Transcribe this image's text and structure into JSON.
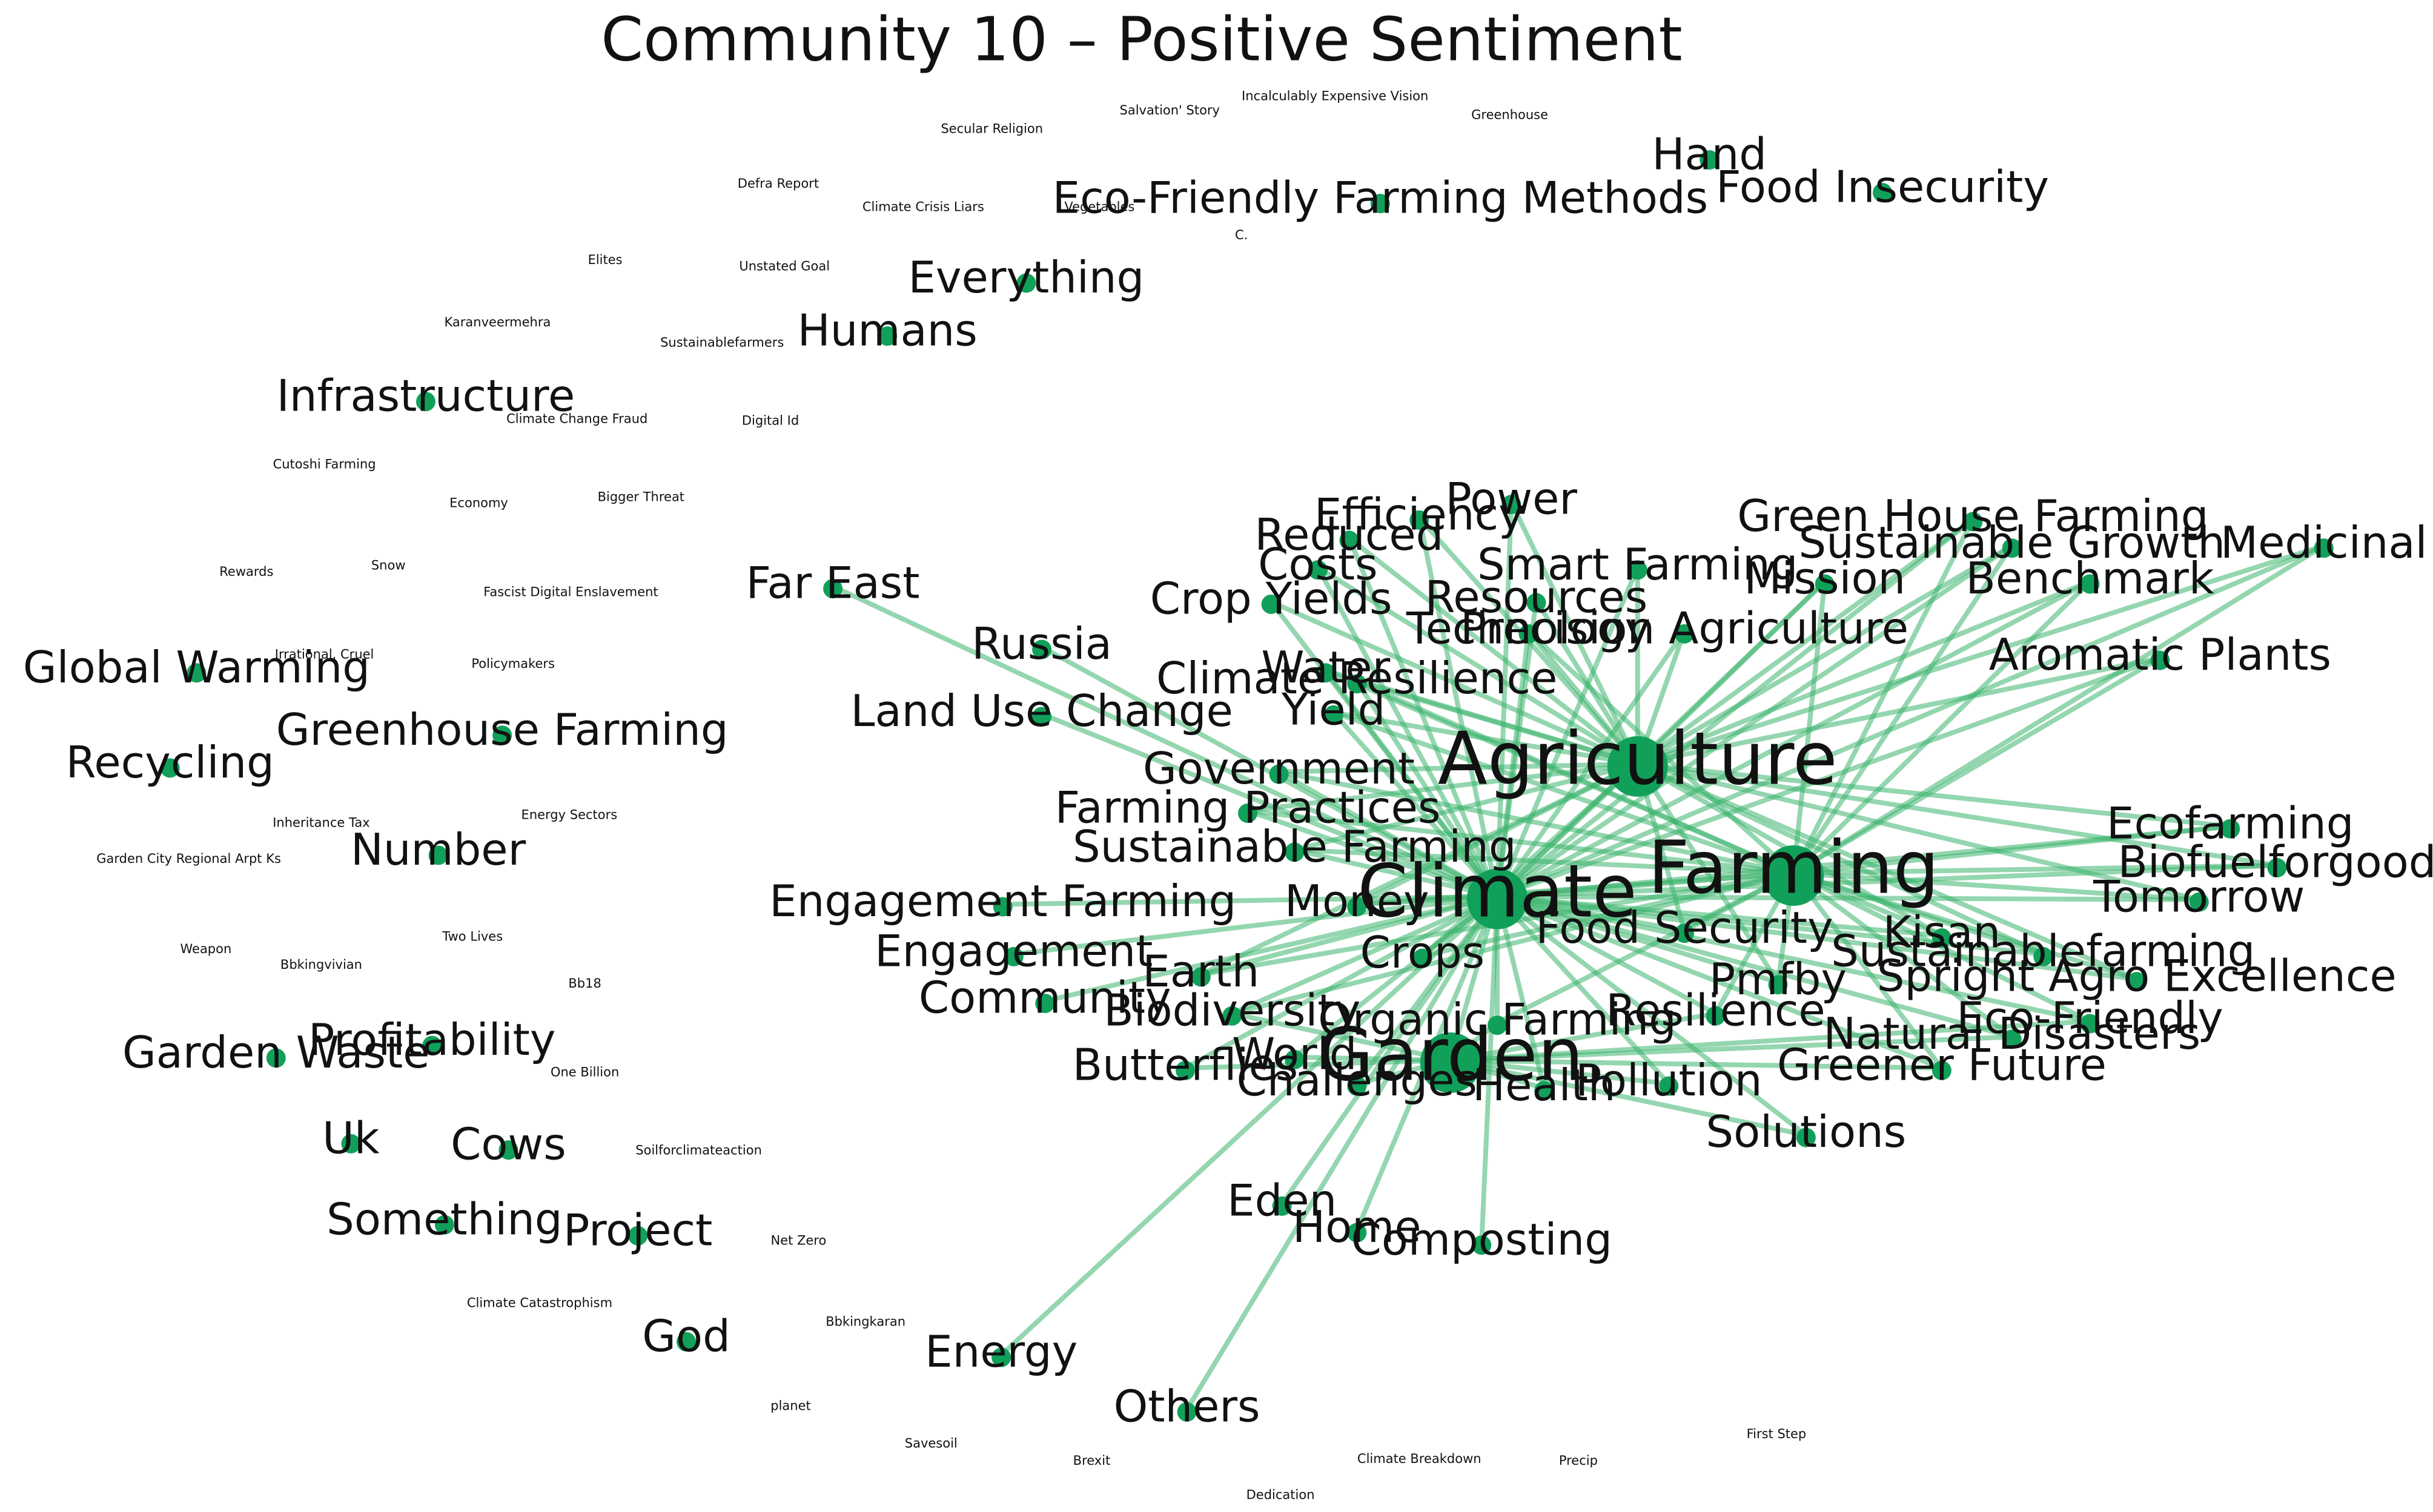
{
  "title": "Community 10 – Positive Sentiment",
  "nodes": [
    {
      "label": "Salvation' Story"
    },
    {
      "label": "Incalculably Expensive Vision"
    },
    {
      "label": "Greenhouse"
    },
    {
      "label": "Secular Religion"
    },
    {
      "label": "Defra Report"
    },
    {
      "label": "Climate Crisis Liars"
    },
    {
      "label": "Vegetables"
    },
    {
      "label": "C."
    },
    {
      "label": "Elites"
    },
    {
      "label": "Unstated Goal"
    },
    {
      "label": "Karanveermehra"
    },
    {
      "label": "Sustainablefarmers"
    },
    {
      "label": "Climate Change Fraud"
    },
    {
      "label": "Digital Id"
    },
    {
      "label": "Cutoshi Farming"
    },
    {
      "label": "Economy"
    },
    {
      "label": "Bigger Threat"
    },
    {
      "label": "Rewards"
    },
    {
      "label": "Snow"
    },
    {
      "label": "Fascist Digital Enslavement"
    },
    {
      "label": "Irrational, Cruel"
    },
    {
      "label": "Policymakers"
    },
    {
      "label": "Inheritance Tax"
    },
    {
      "label": "Energy Sectors"
    },
    {
      "label": "Garden City Regional Arpt Ks"
    },
    {
      "label": "Two Lives"
    },
    {
      "label": "Weapon"
    },
    {
      "label": "Bbkingvivian"
    },
    {
      "label": "Bb18"
    },
    {
      "label": "One Billion"
    },
    {
      "label": "Soilforclimateaction"
    },
    {
      "label": "Net Zero"
    },
    {
      "label": "Climate Catastrophism"
    },
    {
      "label": "Bbkingkaran"
    },
    {
      "label": "planet"
    },
    {
      "label": "Savesoil"
    },
    {
      "label": "Brexit"
    },
    {
      "label": "Climate Breakdown"
    },
    {
      "label": "Precip"
    },
    {
      "label": "First Step"
    },
    {
      "label": "Dedication"
    },
    {
      "label": "Hand"
    },
    {
      "label": "Food Insecurity"
    },
    {
      "label": "Eco-Friendly Farming Methods"
    },
    {
      "label": "Everything"
    },
    {
      "label": "Humans"
    },
    {
      "label": "Infrastructure"
    },
    {
      "label": "Far East"
    },
    {
      "label": "Russia"
    },
    {
      "label": "Global Warming"
    },
    {
      "label": "Greenhouse Farming"
    },
    {
      "label": "Recycling"
    },
    {
      "label": "Land Use Change"
    },
    {
      "label": "Number"
    },
    {
      "label": "Engagement Farming"
    },
    {
      "label": "Engagement"
    },
    {
      "label": "Community"
    },
    {
      "label": "Garden Waste"
    },
    {
      "label": "Profitability"
    },
    {
      "label": "Uk"
    },
    {
      "label": "Cows"
    },
    {
      "label": "Something"
    },
    {
      "label": "Project"
    },
    {
      "label": "God"
    },
    {
      "label": "Energy"
    },
    {
      "label": "Others"
    },
    {
      "label": "Eden"
    },
    {
      "label": "Home"
    },
    {
      "label": "Composting"
    },
    {
      "label": "Power"
    },
    {
      "label": "Efficiency"
    },
    {
      "label": "Reduced"
    },
    {
      "label": "Costs"
    },
    {
      "label": "Crop Yields"
    },
    {
      "label": "Resources"
    },
    {
      "label": "Precision Agriculture"
    },
    {
      "label": "Smart Farming"
    },
    {
      "label": "Green House Farming"
    },
    {
      "label": "Sustainable Growth"
    },
    {
      "label": "Medicinal"
    },
    {
      "label": "Benchmark"
    },
    {
      "label": "Mission"
    },
    {
      "label": "Technology"
    },
    {
      "label": "Water"
    },
    {
      "label": "Climate Resilience"
    },
    {
      "label": "Aromatic Plants"
    },
    {
      "label": "Yield"
    },
    {
      "label": "Government"
    },
    {
      "label": "Farming Practices"
    },
    {
      "label": "Sustainable Farming"
    },
    {
      "label": "Money"
    },
    {
      "label": "Earth"
    },
    {
      "label": "Crops"
    },
    {
      "label": "Food Security"
    },
    {
      "label": "Tomorrow"
    },
    {
      "label": "Biofuelforgood"
    },
    {
      "label": "Ecofarming"
    },
    {
      "label": "Sustainablefarming"
    },
    {
      "label": "Kisan"
    },
    {
      "label": "Pmfby"
    },
    {
      "label": "Spright Agro Excellence"
    },
    {
      "label": "Biodiversity"
    },
    {
      "label": "Organic Farming"
    },
    {
      "label": "Resilience"
    },
    {
      "label": "Eco-Friendly"
    },
    {
      "label": "Natural Disasters"
    },
    {
      "label": "Greener Future"
    },
    {
      "label": "Butterflies"
    },
    {
      "label": "World"
    },
    {
      "label": "Challenges"
    },
    {
      "label": "Health"
    },
    {
      "label": "Pollution"
    },
    {
      "label": "Solutions"
    },
    {
      "label": "Climate"
    },
    {
      "label": "Agriculture"
    },
    {
      "label": "Garden"
    },
    {
      "label": "Farming"
    }
  ]
}
